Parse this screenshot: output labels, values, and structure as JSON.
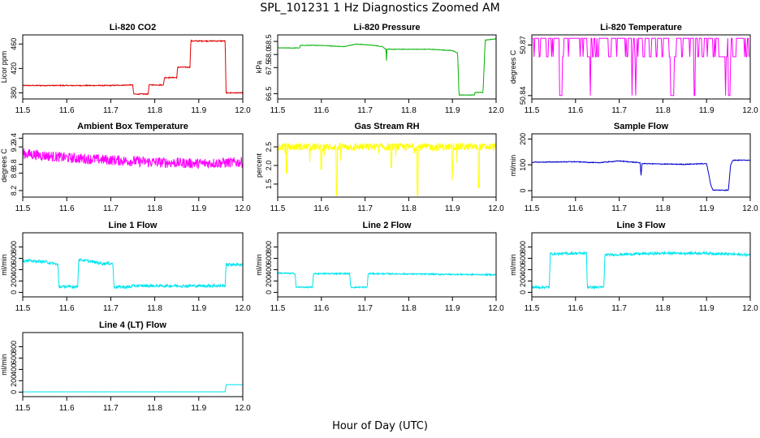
{
  "page": {
    "title": "SPL_101231  1 Hz Diagnostics Zoomed AM",
    "xlabel": "Hour of Day (UTC)"
  },
  "chart_data": [
    {
      "type": "line",
      "title": "Li-820 CO2",
      "ylabel": "Licor ppm",
      "xlim": [
        11.5,
        12.0
      ],
      "ylim": [
        370,
        475
      ],
      "yticks": [
        380,
        420,
        460
      ],
      "yticklabels": [
        "380",
        "420",
        "460"
      ],
      "xticks": [
        11.5,
        11.6,
        11.7,
        11.8,
        11.9,
        12.0
      ],
      "xticklabels": [
        "11.5",
        "11.6",
        "11.7",
        "11.8",
        "11.9",
        "12.0"
      ],
      "color": "#e00000",
      "series": [
        {
          "x": [
            11.5,
            11.6,
            11.7,
            11.75,
            11.752,
            11.785,
            11.787,
            11.82,
            11.822,
            11.85,
            11.852,
            11.88,
            11.882,
            11.96,
            11.962,
            12.0
          ],
          "y": [
            392,
            392,
            392,
            393,
            378,
            378,
            393,
            393,
            405,
            405,
            422,
            422,
            465,
            465,
            380,
            380
          ],
          "noise": 0.8
        }
      ]
    },
    {
      "type": "line",
      "title": "Li-820 Pressure",
      "ylabel": "kPa",
      "xlim": [
        11.5,
        12.0
      ],
      "ylim": [
        66.3,
        68.75
      ],
      "yticks": [
        66.5,
        67.5,
        68.0,
        68.5
      ],
      "yticklabels": [
        "66.5",
        "67.5",
        "68.0",
        "68.5"
      ],
      "xticks": [
        11.5,
        11.6,
        11.7,
        11.8,
        11.9,
        12.0
      ],
      "xticklabels": [
        "11.5",
        "11.6",
        "11.7",
        "11.8",
        "11.9",
        "12.0"
      ],
      "color": "#00b000",
      "series": [
        {
          "x": [
            11.5,
            11.55,
            11.552,
            11.6,
            11.65,
            11.68,
            11.72,
            11.74,
            11.748,
            11.749,
            11.75,
            11.752,
            11.8,
            11.85,
            11.9,
            11.912,
            11.915,
            11.95,
            11.952,
            11.97,
            11.975,
            12.0
          ],
          "y": [
            68.25,
            68.25,
            68.35,
            68.35,
            68.3,
            68.4,
            68.35,
            68.3,
            68.2,
            67.7,
            68.2,
            68.2,
            68.2,
            68.2,
            68.15,
            68.05,
            66.45,
            66.45,
            66.55,
            66.55,
            68.55,
            68.6
          ],
          "noise": 0.01
        }
      ]
    },
    {
      "type": "line",
      "title": "Li-820 Temperature",
      "ylabel": "degrees C",
      "xlim": [
        11.5,
        12.0
      ],
      "ylim": [
        50.838,
        50.876
      ],
      "yticks": [
        50.84,
        50.87
      ],
      "yticklabels": [
        "50.84",
        "50.87"
      ],
      "xticks": [
        11.5,
        11.6,
        11.7,
        11.8,
        11.9,
        12.0
      ],
      "xticklabels": [
        "11.5",
        "11.6",
        "11.7",
        "11.8",
        "11.9",
        "12.0"
      ],
      "color": "#ff00ff",
      "series": [
        {
          "x": [
            11.5,
            12.0
          ],
          "y": [
            50.84,
            50.874
          ],
          "quantized": [
            50.84,
            50.863,
            50.874
          ]
        }
      ]
    },
    {
      "type": "line",
      "title": "Ambient Box Temperature",
      "ylabel": "degrees C",
      "xlim": [
        11.5,
        12.0
      ],
      "ylim": [
        8.05,
        9.5
      ],
      "yticks": [
        8.2,
        8.6,
        8.8,
        9.2,
        9.4
      ],
      "yticklabels": [
        "8.2",
        "8.6",
        "8.8",
        "9.2",
        "9.4"
      ],
      "xticks": [
        11.5,
        11.6,
        11.7,
        11.8,
        11.9,
        12.0
      ],
      "xticklabels": [
        "11.5",
        "11.6",
        "11.7",
        "11.8",
        "11.9",
        "12.0"
      ],
      "color": "#ff00ff",
      "series": [
        {
          "x": [
            11.5,
            11.6,
            11.7,
            11.8,
            11.9,
            12.0
          ],
          "y": [
            9.05,
            8.95,
            8.9,
            8.85,
            8.82,
            8.85
          ],
          "noise": 0.12
        }
      ]
    },
    {
      "type": "line",
      "title": "Gas Stream RH",
      "ylabel": "percent",
      "xlim": [
        11.5,
        12.0
      ],
      "ylim": [
        1.15,
        2.85
      ],
      "yticks": [
        1.5,
        2.0,
        2.5
      ],
      "yticklabels": [
        "1.5",
        "2.0",
        "2.5"
      ],
      "xticks": [
        11.5,
        11.6,
        11.7,
        11.8,
        11.9,
        12.0
      ],
      "xticklabels": [
        "11.5",
        "11.6",
        "11.7",
        "11.8",
        "11.9",
        "12.0"
      ],
      "color": "#ffff00",
      "series": [
        {
          "x": [
            11.5,
            12.0
          ],
          "y": [
            2.5,
            2.5
          ],
          "noise": 0.1,
          "spikes": [
            [
              11.635,
              1.2
            ],
            [
              11.6,
              1.9
            ],
            [
              11.82,
              1.2
            ],
            [
              11.96,
              1.4
            ],
            [
              11.76,
              1.95
            ],
            [
              11.52,
              1.8
            ],
            [
              11.9,
              1.9
            ]
          ]
        }
      ]
    },
    {
      "type": "line",
      "title": "Sample Flow",
      "ylabel": "ml/min",
      "xlim": [
        11.5,
        12.0
      ],
      "ylim": [
        -25,
        220
      ],
      "yticks": [
        0,
        100,
        200
      ],
      "yticklabels": [
        "0",
        "100",
        "200"
      ],
      "xticks": [
        11.5,
        11.6,
        11.7,
        11.8,
        11.9,
        12.0
      ],
      "xticklabels": [
        "11.5",
        "11.6",
        "11.7",
        "11.8",
        "11.9",
        "12.0"
      ],
      "color": "#0000cc",
      "series": [
        {
          "x": [
            11.5,
            11.6,
            11.65,
            11.7,
            11.748,
            11.75,
            11.752,
            11.8,
            11.85,
            11.9,
            11.91,
            11.915,
            11.95,
            11.955,
            11.96,
            12.0
          ],
          "y": [
            110,
            112,
            108,
            115,
            108,
            58,
            105,
            103,
            102,
            105,
            20,
            2,
            2,
            100,
            118,
            118
          ],
          "noise": 1.5
        }
      ]
    },
    {
      "type": "line",
      "title": "Line 1 Flow",
      "ylabel": "ml/min",
      "xlim": [
        11.5,
        12.0
      ],
      "ylim": [
        -80,
        1050
      ],
      "yticks": [
        0,
        200,
        400,
        600,
        800
      ],
      "yticklabels": [
        "0",
        "200",
        "400",
        "600",
        "800"
      ],
      "xticks": [
        11.5,
        11.6,
        11.7,
        11.8,
        11.9,
        12.0
      ],
      "xticklabels": [
        "11.5",
        "11.6",
        "11.7",
        "11.8",
        "11.9",
        "12.0"
      ],
      "color": "#00e5ee",
      "series": [
        {
          "x": [
            11.5,
            11.55,
            11.58,
            11.582,
            11.625,
            11.627,
            11.68,
            11.705,
            11.707,
            11.745,
            11.75,
            11.96,
            11.962,
            12.0
          ],
          "y": [
            560,
            540,
            490,
            100,
            100,
            580,
            510,
            510,
            95,
            95,
            115,
            115,
            490,
            490
          ],
          "noise": 25
        }
      ]
    },
    {
      "type": "line",
      "title": "Line 2 Flow",
      "ylabel": "ml/min",
      "xlim": [
        11.5,
        12.0
      ],
      "ylim": [
        -80,
        1050
      ],
      "yticks": [
        0,
        200,
        400,
        600,
        800
      ],
      "yticklabels": [
        "0",
        "200",
        "400",
        "600",
        "800"
      ],
      "xticks": [
        11.5,
        11.6,
        11.7,
        11.8,
        11.9,
        12.0
      ],
      "xticklabels": [
        "11.5",
        "11.6",
        "11.7",
        "11.8",
        "11.9",
        "12.0"
      ],
      "color": "#00e5ee",
      "series": [
        {
          "x": [
            11.5,
            11.54,
            11.542,
            11.58,
            11.582,
            11.665,
            11.667,
            11.705,
            11.707,
            12.0
          ],
          "y": [
            340,
            330,
            90,
            90,
            330,
            330,
            90,
            90,
            330,
            310
          ],
          "noise": 12
        }
      ]
    },
    {
      "type": "line",
      "title": "Line 3 Flow",
      "ylabel": "ml/min",
      "xlim": [
        11.5,
        12.0
      ],
      "ylim": [
        -80,
        1050
      ],
      "yticks": [
        0,
        200,
        400,
        600,
        800
      ],
      "yticklabels": [
        "0",
        "200",
        "400",
        "600",
        "800"
      ],
      "xticks": [
        11.5,
        11.6,
        11.7,
        11.8,
        11.9,
        12.0
      ],
      "xticklabels": [
        "11.5",
        "11.6",
        "11.7",
        "11.8",
        "11.9",
        "12.0"
      ],
      "color": "#00e5ee",
      "series": [
        {
          "x": [
            11.5,
            11.54,
            11.542,
            11.625,
            11.627,
            11.665,
            11.667,
            11.8,
            11.9,
            12.0
          ],
          "y": [
            90,
            90,
            680,
            690,
            90,
            90,
            660,
            690,
            690,
            660
          ],
          "noise": 22
        }
      ]
    },
    {
      "type": "line",
      "title": "Line 4 (LT) Flow",
      "ylabel": "ml/min",
      "xlim": [
        11.5,
        12.0
      ],
      "ylim": [
        -80,
        1050
      ],
      "yticks": [
        0,
        200,
        400,
        600,
        800
      ],
      "yticklabels": [
        "0",
        "200",
        "400",
        "600",
        "800"
      ],
      "xticks": [
        11.5,
        11.6,
        11.7,
        11.8,
        11.9,
        12.0
      ],
      "xticklabels": [
        "11.5",
        "11.6",
        "11.7",
        "11.8",
        "11.9",
        "12.0"
      ],
      "color": "#00e5ee",
      "series": [
        {
          "x": [
            11.5,
            11.96,
            11.962,
            12.0
          ],
          "y": [
            5,
            5,
            130,
            130
          ],
          "noise": 1
        }
      ]
    }
  ]
}
